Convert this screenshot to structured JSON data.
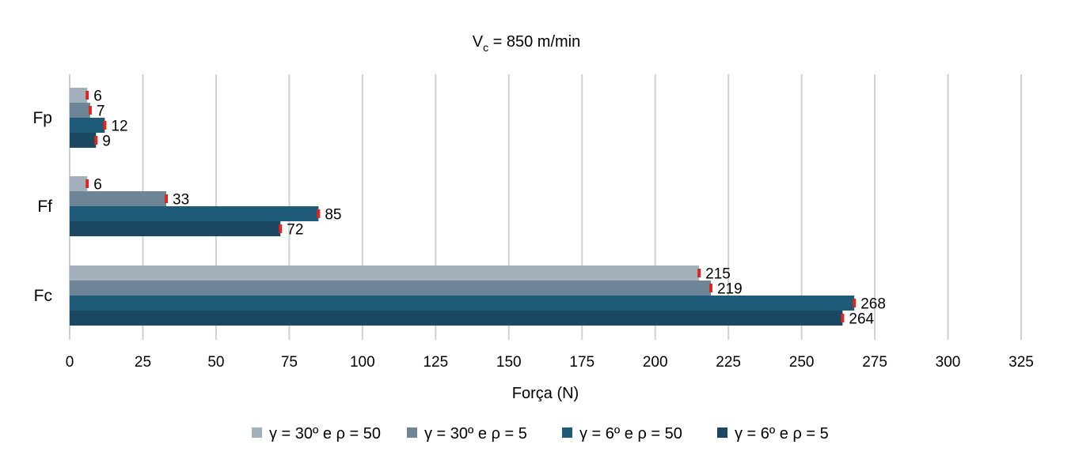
{
  "chart_data": {
    "type": "bar",
    "orientation": "horizontal",
    "title": "V",
    "title_subscript": "c",
    "title_suffix": " = 850 m/min",
    "xlabel": "Força (N)",
    "ylabel": "",
    "xlim": [
      0,
      325
    ],
    "xticks": [
      0,
      25,
      50,
      75,
      100,
      125,
      150,
      175,
      200,
      225,
      250,
      275,
      300,
      325
    ],
    "grid": true,
    "legend_position": "bottom",
    "categories": [
      "Fp",
      "Ff",
      "Fc"
    ],
    "series": [
      {
        "name": "γ = 30º e ρ = 50",
        "color": "#a2b0bb",
        "values": [
          6,
          6,
          215
        ]
      },
      {
        "name": "γ = 30º e ρ = 5",
        "color": "#6d8597",
        "values": [
          7,
          33,
          219
        ]
      },
      {
        "name": "γ = 6º e ρ = 50",
        "color": "#1d5b79",
        "values": [
          12,
          85,
          268
        ]
      },
      {
        "name": "γ = 6º e ρ = 5",
        "color": "#1a4862",
        "values": [
          9,
          72,
          264
        ]
      }
    ],
    "error_bar_color": "#e0251b"
  }
}
